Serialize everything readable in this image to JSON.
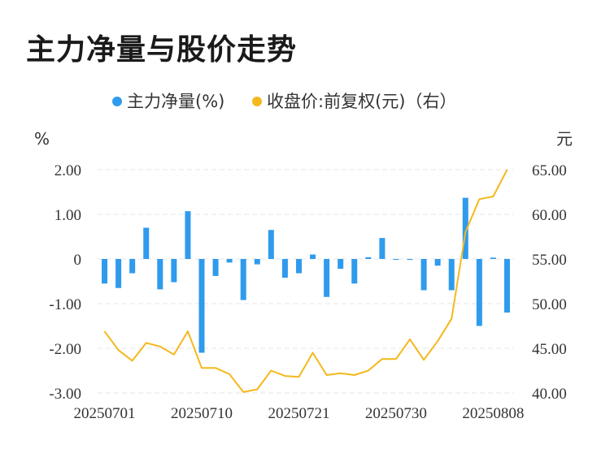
{
  "title": "主力净量与股价走势",
  "colors": {
    "bar": "#2f9bec",
    "line": "#f5b81c",
    "grid": "#e6e6e6"
  },
  "chart_data": {
    "type": "bar+line",
    "legend": [
      {
        "label": "主力净量(%)",
        "color": "#2f9bec"
      },
      {
        "label": "收盘价:前复权(元)（右）",
        "color": "#f5b81c"
      }
    ],
    "left_unit": "%",
    "right_unit": "元",
    "left_ticks": [
      "2.00",
      "1.00",
      "0",
      "-1.00",
      "-2.00",
      "-3.00"
    ],
    "right_ticks": [
      "65.00",
      "60.00",
      "55.00",
      "50.00",
      "45.00",
      "40.00"
    ],
    "ylim_left": [
      -3,
      2
    ],
    "ylim_right": [
      40,
      65
    ],
    "x_tick_labels": [
      {
        "index": 0,
        "label": "20250701"
      },
      {
        "index": 7,
        "label": "20250710"
      },
      {
        "index": 14,
        "label": "20250721"
      },
      {
        "index": 21,
        "label": "20250730"
      },
      {
        "index": 28,
        "label": "20250808"
      }
    ],
    "categories": [
      "20250701",
      "20250702",
      "20250703",
      "20250704",
      "20250707",
      "20250708",
      "20250709",
      "20250710",
      "20250711",
      "20250714",
      "20250715",
      "20250716",
      "20250717",
      "20250718",
      "20250721",
      "20250722",
      "20250723",
      "20250724",
      "20250725",
      "20250728",
      "20250729",
      "20250730",
      "20250731",
      "20250801",
      "20250804",
      "20250805",
      "20250806",
      "20250807",
      "20250808",
      "20250811"
    ],
    "series": [
      {
        "name": "主力净量(%)",
        "axis": "left",
        "kind": "bar",
        "values": [
          -0.55,
          -0.65,
          -0.32,
          0.7,
          -0.68,
          -0.52,
          1.07,
          -2.1,
          -0.38,
          -0.08,
          -0.92,
          -0.12,
          0.65,
          -0.42,
          -0.32,
          0.1,
          -0.85,
          -0.22,
          -0.55,
          0.04,
          0.47,
          -0.02,
          -0.02,
          -0.7,
          -0.15,
          -0.7,
          1.37,
          -1.5,
          0.03,
          -1.2
        ]
      },
      {
        "name": "收盘价:前复权(元)（右）",
        "axis": "right",
        "kind": "line",
        "values": [
          46.9,
          44.8,
          43.6,
          45.6,
          45.2,
          44.3,
          46.9,
          42.8,
          42.8,
          42.1,
          40.1,
          40.4,
          42.5,
          41.9,
          41.8,
          44.5,
          42.0,
          42.2,
          42.0,
          42.5,
          43.8,
          43.8,
          46.0,
          43.7,
          45.8,
          48.3,
          58.0,
          61.7,
          62.0,
          65.0
        ]
      }
    ]
  }
}
